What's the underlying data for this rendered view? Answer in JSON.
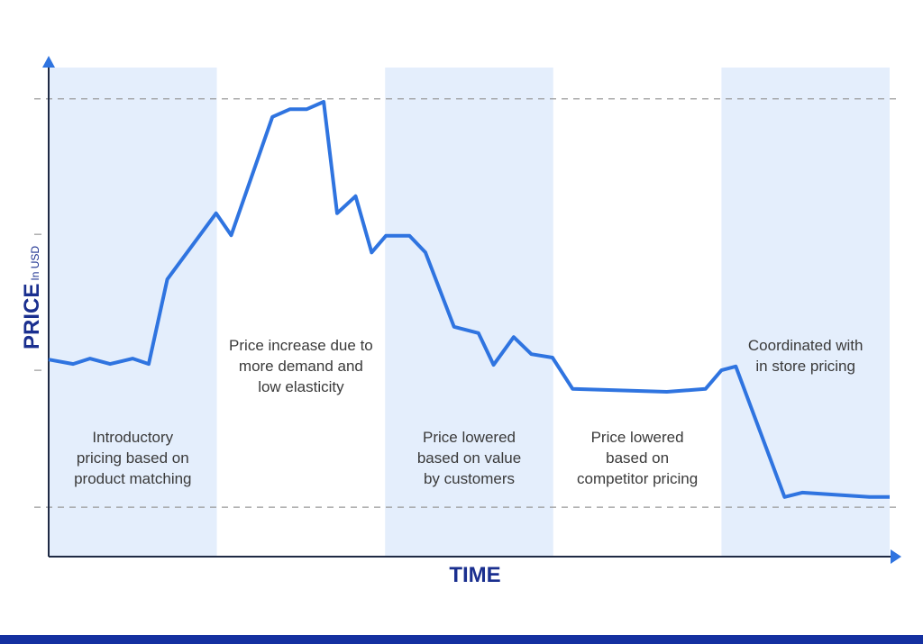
{
  "chart_data": {
    "type": "line",
    "title": "",
    "xlabel": "TIME",
    "ylabel": "PRICE",
    "ylabel_unit": "In USD",
    "xlim": [
      0,
      100
    ],
    "ylim": [
      0,
      100
    ],
    "grid": false,
    "reference_lines": [
      93.6,
      10.1
    ],
    "y_ticks": [
      65.9,
      38.1
    ],
    "series": [
      {
        "x": [
          0,
          2.9,
          4.9,
          7.3,
          10.0,
          11.9,
          14.1,
          19.9,
          21.7,
          26.6,
          28.7,
          30.7,
          32.7,
          34.3,
          36.5,
          38.4,
          40.1,
          42.9,
          44.8,
          48.2,
          51.1,
          52.9,
          55.3,
          57.4,
          59.9,
          62.3,
          73.5,
          78.1,
          80.0,
          81.7,
          87.5,
          89.6,
          97.6,
          100
        ],
        "y": [
          40.3,
          39.4,
          40.5,
          39.4,
          40.5,
          39.4,
          56.7,
          70.2,
          65.7,
          89.9,
          91.5,
          91.5,
          93.0,
          70.2,
          73.7,
          62.2,
          65.6,
          65.6,
          62.2,
          47.0,
          45.7,
          39.2,
          44.9,
          41.4,
          40.7,
          34.3,
          33.7,
          34.3,
          38.1,
          38.9,
          12.2,
          13.1,
          12.2,
          12.2
        ]
      }
    ],
    "phases": [
      {
        "range": [
          0,
          20
        ],
        "shaded": true,
        "label": [
          "Introductory",
          "pricing based on",
          "product matching"
        ]
      },
      {
        "range": [
          20,
          40
        ],
        "shaded": false,
        "label": [
          "Price increase due to",
          "more demand and",
          "low elasticity"
        ]
      },
      {
        "range": [
          40,
          60
        ],
        "shaded": true,
        "label": [
          "Price lowered",
          "based on value",
          "by customers"
        ]
      },
      {
        "range": [
          60,
          80
        ],
        "shaded": false,
        "label": [
          "Price lowered",
          "based on",
          "competitor pricing"
        ]
      },
      {
        "range": [
          80,
          100
        ],
        "shaded": true,
        "label": [
          "Coordinated with",
          "in store pricing"
        ]
      }
    ],
    "colors": {
      "line": "#2f74e0",
      "band": "#e4eefc",
      "axis": "#1f2a44",
      "axis_arrow": "#2f74e0",
      "label": "#1a2f8f",
      "reference": "#999999",
      "footer": "#1430a0"
    }
  }
}
